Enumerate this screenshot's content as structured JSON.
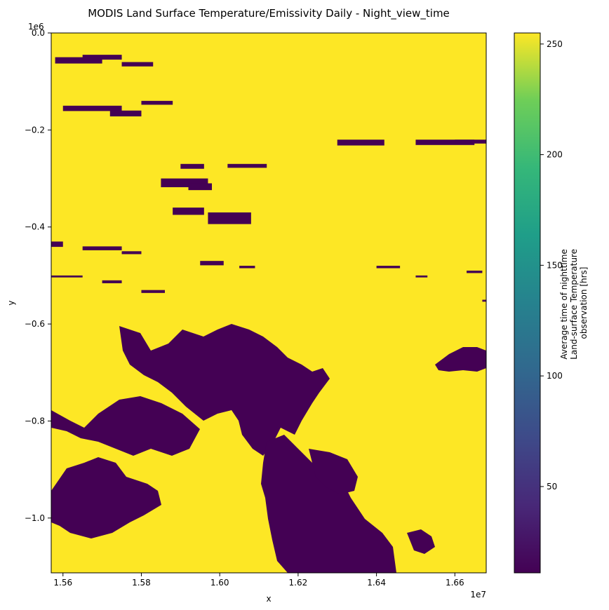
{
  "chart_data": {
    "type": "heatmap",
    "title": "MODIS Land Surface Temperature/Emissivity Daily - Night_view_time",
    "xlabel": "x",
    "ylabel": "y",
    "x_offset_label": "1e7",
    "y_offset_label": "1e6",
    "xlim": [
      1.557,
      1.668
    ],
    "ylim": [
      -1.113,
      0.0
    ],
    "x_ticks": [
      {
        "value": 1.56,
        "label": "1.56"
      },
      {
        "value": 1.58,
        "label": "1.58"
      },
      {
        "value": 1.6,
        "label": "1.60"
      },
      {
        "value": 1.62,
        "label": "1.62"
      },
      {
        "value": 1.64,
        "label": "1.64"
      },
      {
        "value": 1.66,
        "label": "1.66"
      }
    ],
    "y_ticks": [
      {
        "value": 0.0,
        "label": "0.0"
      },
      {
        "value": -0.2,
        "label": "−0.2"
      },
      {
        "value": -0.4,
        "label": "−0.4"
      },
      {
        "value": -0.6,
        "label": "−0.6"
      },
      {
        "value": -0.8,
        "label": "−0.8"
      },
      {
        "value": -1.0,
        "label": "−1.0"
      }
    ],
    "colorbar": {
      "label_lines": [
        "Average time of nighttime",
        "Land-surface Temperature",
        "observation [hrs]"
      ],
      "colormap": "viridis",
      "range": [
        11,
        255
      ],
      "ticks": [
        {
          "value": 50,
          "label": "50"
        },
        {
          "value": 100,
          "label": "100"
        },
        {
          "value": 150,
          "label": "150"
        },
        {
          "value": 200,
          "label": "200"
        },
        {
          "value": 250,
          "label": "250"
        }
      ]
    },
    "background_value": 255,
    "patch_value": 13,
    "patches": [
      [
        1.558,
        -0.05,
        0.012,
        0.013
      ],
      [
        1.565,
        -0.045,
        0.01,
        0.01
      ],
      [
        1.575,
        -0.06,
        0.008,
        0.009
      ],
      [
        1.56,
        -0.15,
        0.015,
        0.011
      ],
      [
        1.572,
        -0.16,
        0.008,
        0.012
      ],
      [
        1.58,
        -0.14,
        0.008,
        0.008
      ],
      [
        1.59,
        -0.27,
        0.006,
        0.01
      ],
      [
        1.588,
        -0.36,
        0.008,
        0.015
      ],
      [
        1.597,
        -0.37,
        0.011,
        0.024
      ],
      [
        1.585,
        -0.3,
        0.012,
        0.018
      ],
      [
        1.592,
        -0.31,
        0.006,
        0.014
      ],
      [
        1.602,
        -0.27,
        0.01,
        0.008
      ],
      [
        1.63,
        -0.22,
        0.012,
        0.012
      ],
      [
        1.65,
        -0.22,
        0.015,
        0.011
      ],
      [
        1.66,
        -0.22,
        0.008,
        0.008
      ],
      [
        1.557,
        -0.43,
        0.003,
        0.011
      ],
      [
        1.565,
        -0.44,
        0.01,
        0.008
      ],
      [
        1.575,
        -0.45,
        0.005,
        0.006
      ],
      [
        1.557,
        -0.5,
        0.008,
        0.004
      ],
      [
        1.57,
        -0.51,
        0.005,
        0.006
      ],
      [
        1.58,
        -0.53,
        0.006,
        0.006
      ],
      [
        1.595,
        -0.47,
        0.006,
        0.009
      ],
      [
        1.605,
        -0.48,
        0.004,
        0.005
      ],
      [
        1.64,
        -0.48,
        0.006,
        0.005
      ],
      [
        1.65,
        -0.5,
        0.003,
        0.004
      ],
      [
        1.663,
        -0.49,
        0.004,
        0.005
      ],
      [
        1.667,
        -0.55,
        0.004,
        0.004
      ]
    ]
  }
}
